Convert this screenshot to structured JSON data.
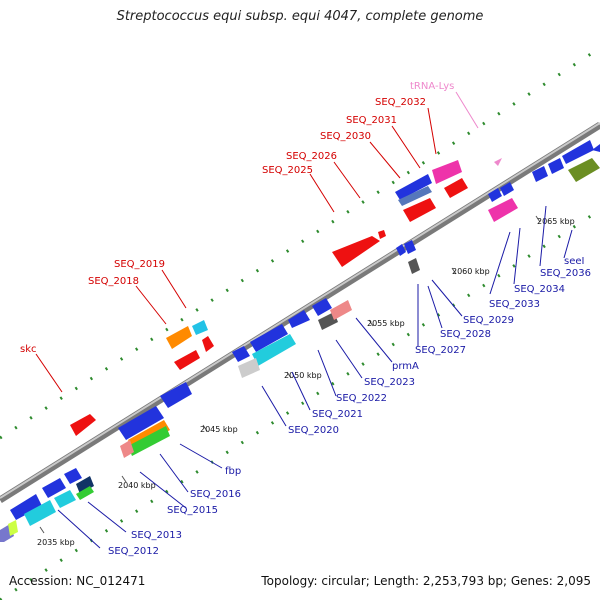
{
  "title": "Streptococcus equi subsp. equi 4047, complete genome",
  "accession": "Accession: NC_012471",
  "summary": "Topology: circular; Length: 2,253,793 bp; Genes: 2,095",
  "scale_labels": [
    "2035 kbp",
    "2040 kbp",
    "2045 kbp",
    "2050 kbp",
    "2055 kbp",
    "2060 kbp",
    "2065 kbp"
  ],
  "gene_labels": [
    {
      "text": "SEQ_2032",
      "color": "#d40000"
    },
    {
      "text": "SEQ_2031",
      "color": "#d40000"
    },
    {
      "text": "SEQ_2030",
      "color": "#d40000"
    },
    {
      "text": "SEQ_2026",
      "color": "#d40000"
    },
    {
      "text": "SEQ_2025",
      "color": "#d40000"
    },
    {
      "text": "SEQ_2019",
      "color": "#d40000"
    },
    {
      "text": "SEQ_2018",
      "color": "#d40000"
    },
    {
      "text": "skc",
      "color": "#d40000"
    },
    {
      "text": "tRNA-Lys",
      "color": "#ee88cc"
    },
    {
      "text": "SEQ_2013",
      "color": "#1a1aa6"
    },
    {
      "text": "SEQ_2012",
      "color": "#1a1aa6"
    },
    {
      "text": "SEQ_2016",
      "color": "#1a1aa6"
    },
    {
      "text": "SEQ_2015",
      "color": "#1a1aa6"
    },
    {
      "text": "fbp",
      "color": "#1a1aa6"
    },
    {
      "text": "SEQ_2020",
      "color": "#1a1aa6"
    },
    {
      "text": "SEQ_2021",
      "color": "#1a1aa6"
    },
    {
      "text": "SEQ_2022",
      "color": "#1a1aa6"
    },
    {
      "text": "SEQ_2023",
      "color": "#1a1aa6"
    },
    {
      "text": "prmA",
      "color": "#1a1aa6"
    },
    {
      "text": "SEQ_2027",
      "color": "#1a1aa6"
    },
    {
      "text": "SEQ_2028",
      "color": "#1a1aa6"
    },
    {
      "text": "SEQ_2029",
      "color": "#1a1aa6"
    },
    {
      "text": "SEQ_2033",
      "color": "#1a1aa6"
    },
    {
      "text": "SEQ_2034",
      "color": "#1a1aa6"
    },
    {
      "text": "SEQ_2036",
      "color": "#1a1aa6"
    },
    {
      "text": "seeI",
      "color": "#1a1aa6"
    }
  ],
  "colors": {
    "backbone": "#8f8f8f",
    "forward_tick": "#2e8b2e",
    "label_red": "#d40000",
    "label_blue": "#1a1aa6",
    "label_pink": "#ee88cc"
  }
}
